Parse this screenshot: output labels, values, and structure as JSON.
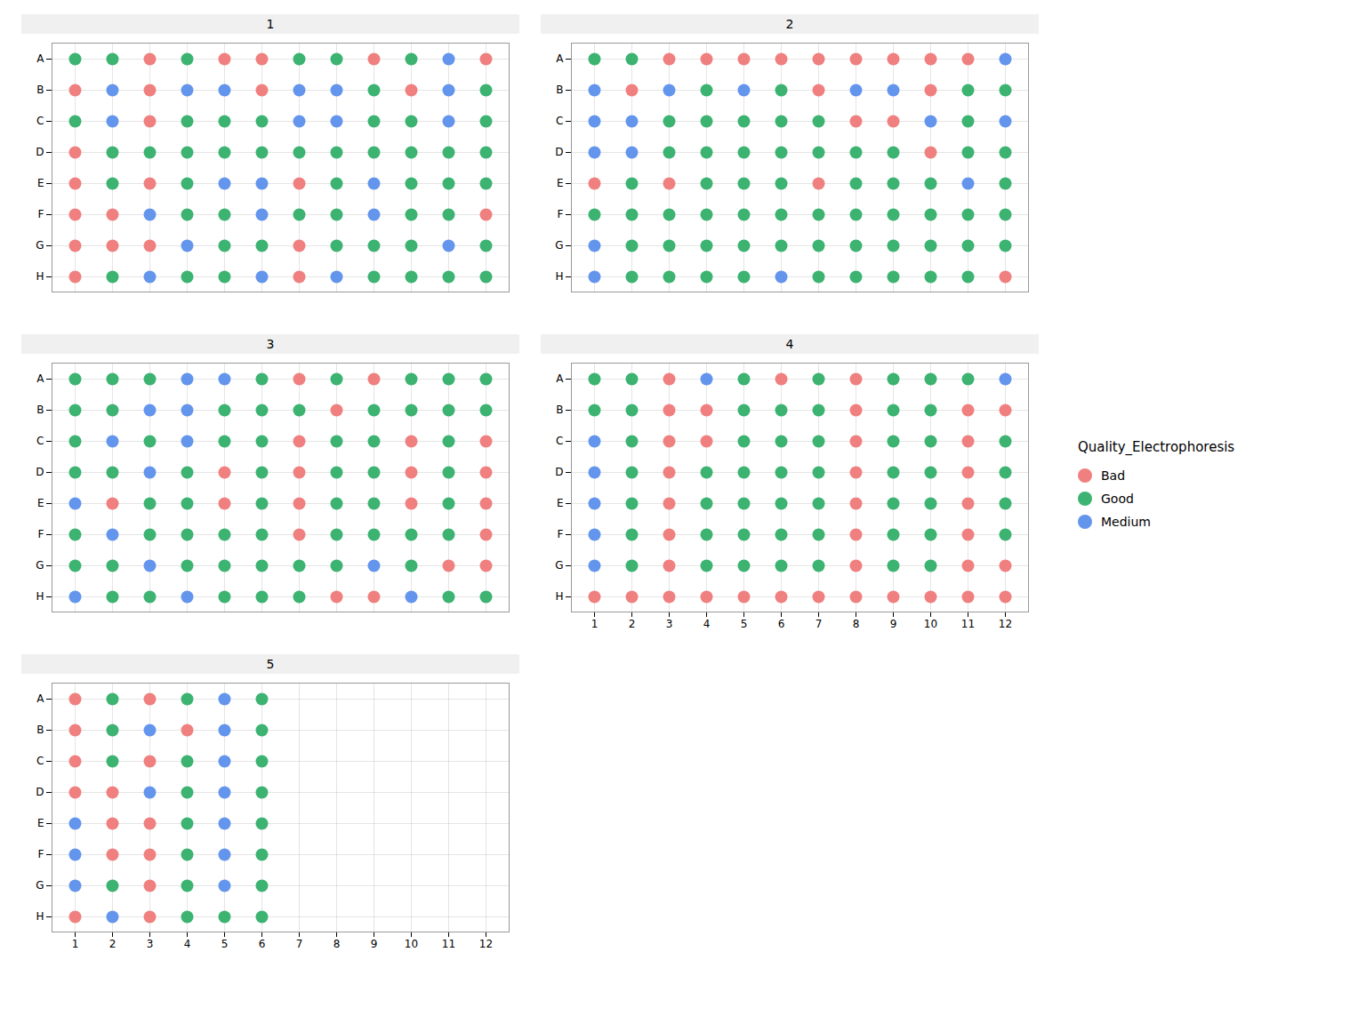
{
  "chart_data": {
    "type": "dot_grid",
    "title": "Quality_Electrophoresis",
    "legend": "right",
    "grid": true,
    "x": [
      1,
      2,
      3,
      4,
      5,
      6,
      7,
      8,
      9,
      10,
      11,
      12
    ],
    "y": [
      "A",
      "B",
      "C",
      "D",
      "E",
      "F",
      "G",
      "H"
    ],
    "series": [
      {
        "name": "Bad",
        "color": "#F08080"
      },
      {
        "name": "Good",
        "color": "#3CB371"
      },
      {
        "name": "Medium",
        "color": "#6495ED"
      }
    ],
    "panels": [
      {
        "title": "1",
        "tick_labels": "y",
        "cells": [
          [
            "Good",
            "Good",
            "Bad",
            "Good",
            "Bad",
            "Bad",
            "Good",
            "Good",
            "Bad",
            "Good",
            "Medium",
            "Bad"
          ],
          [
            "Bad",
            "Medium",
            "Bad",
            "Medium",
            "Medium",
            "Bad",
            "Medium",
            "Medium",
            "Good",
            "Bad",
            "Medium",
            "Good"
          ],
          [
            "Good",
            "Medium",
            "Bad",
            "Good",
            "Good",
            "Good",
            "Medium",
            "Medium",
            "Good",
            "Good",
            "Medium",
            "Good"
          ],
          [
            "Bad",
            "Good",
            "Good",
            "Good",
            "Good",
            "Good",
            "Good",
            "Good",
            "Good",
            "Good",
            "Good",
            "Good"
          ],
          [
            "Bad",
            "Good",
            "Bad",
            "Good",
            "Medium",
            "Medium",
            "Bad",
            "Good",
            "Medium",
            "Good",
            "Good",
            "Good"
          ],
          [
            "Bad",
            "Bad",
            "Medium",
            "Good",
            "Good",
            "Medium",
            "Good",
            "Good",
            "Medium",
            "Good",
            "Good",
            "Bad"
          ],
          [
            "Bad",
            "Bad",
            "Bad",
            "Medium",
            "Good",
            "Good",
            "Bad",
            "Good",
            "Good",
            "Good",
            "Medium",
            "Good"
          ],
          [
            "Bad",
            "Good",
            "Medium",
            "Good",
            "Good",
            "Medium",
            "Bad",
            "Medium",
            "Good",
            "Good",
            "Good",
            "Good"
          ]
        ]
      },
      {
        "title": "2",
        "tick_labels": "y",
        "cells": [
          [
            "Good",
            "Good",
            "Bad",
            "Bad",
            "Bad",
            "Bad",
            "Bad",
            "Bad",
            "Bad",
            "Bad",
            "Bad",
            "Medium"
          ],
          [
            "Medium",
            "Bad",
            "Medium",
            "Good",
            "Medium",
            "Good",
            "Bad",
            "Medium",
            "Medium",
            "Bad",
            "Good",
            "Good"
          ],
          [
            "Medium",
            "Medium",
            "Good",
            "Good",
            "Good",
            "Good",
            "Good",
            "Bad",
            "Bad",
            "Medium",
            "Good",
            "Medium"
          ],
          [
            "Medium",
            "Medium",
            "Good",
            "Good",
            "Good",
            "Good",
            "Good",
            "Good",
            "Good",
            "Bad",
            "Good",
            "Good"
          ],
          [
            "Bad",
            "Good",
            "Bad",
            "Good",
            "Good",
            "Good",
            "Bad",
            "Good",
            "Good",
            "Good",
            "Medium",
            "Good"
          ],
          [
            "Good",
            "Good",
            "Good",
            "Good",
            "Good",
            "Good",
            "Good",
            "Good",
            "Good",
            "Good",
            "Good",
            "Good"
          ],
          [
            "Medium",
            "Good",
            "Good",
            "Good",
            "Good",
            "Good",
            "Good",
            "Good",
            "Good",
            "Good",
            "Good",
            "Good"
          ],
          [
            "Medium",
            "Good",
            "Good",
            "Good",
            "Good",
            "Medium",
            "Good",
            "Good",
            "Good",
            "Good",
            "Good",
            "Bad"
          ]
        ]
      },
      {
        "title": "3",
        "tick_labels": "y",
        "cells": [
          [
            "Good",
            "Good",
            "Good",
            "Medium",
            "Medium",
            "Good",
            "Bad",
            "Good",
            "Bad",
            "Good",
            "Good",
            "Good"
          ],
          [
            "Good",
            "Good",
            "Medium",
            "Medium",
            "Good",
            "Good",
            "Good",
            "Bad",
            "Good",
            "Good",
            "Good",
            "Good"
          ],
          [
            "Good",
            "Medium",
            "Good",
            "Medium",
            "Good",
            "Good",
            "Bad",
            "Good",
            "Good",
            "Bad",
            "Good",
            "Bad"
          ],
          [
            "Good",
            "Good",
            "Medium",
            "Good",
            "Bad",
            "Good",
            "Bad",
            "Good",
            "Good",
            "Bad",
            "Good",
            "Bad"
          ],
          [
            "Medium",
            "Bad",
            "Good",
            "Good",
            "Bad",
            "Good",
            "Bad",
            "Good",
            "Good",
            "Bad",
            "Good",
            "Bad"
          ],
          [
            "Good",
            "Medium",
            "Good",
            "Good",
            "Good",
            "Good",
            "Bad",
            "Good",
            "Good",
            "Good",
            "Good",
            "Bad"
          ],
          [
            "Good",
            "Good",
            "Medium",
            "Good",
            "Good",
            "Good",
            "Good",
            "Good",
            "Medium",
            "Good",
            "Bad",
            "Bad"
          ],
          [
            "Medium",
            "Good",
            "Good",
            "Medium",
            "Good",
            "Good",
            "Good",
            "Bad",
            "Bad",
            "Medium",
            "Good",
            "Good"
          ]
        ]
      },
      {
        "title": "4",
        "cells": [
          [
            "Good",
            "Good",
            "Bad",
            "Medium",
            "Good",
            "Bad",
            "Good",
            "Bad",
            "Good",
            "Good",
            "Good",
            "Medium"
          ],
          [
            "Good",
            "Good",
            "Bad",
            "Bad",
            "Good",
            "Good",
            "Good",
            "Bad",
            "Good",
            "Good",
            "Bad",
            "Bad"
          ],
          [
            "Medium",
            "Good",
            "Bad",
            "Bad",
            "Good",
            "Good",
            "Good",
            "Bad",
            "Good",
            "Good",
            "Bad",
            "Good"
          ],
          [
            "Medium",
            "Good",
            "Bad",
            "Good",
            "Good",
            "Good",
            "Good",
            "Bad",
            "Good",
            "Good",
            "Bad",
            "Good"
          ],
          [
            "Medium",
            "Good",
            "Bad",
            "Good",
            "Good",
            "Good",
            "Good",
            "Bad",
            "Good",
            "Good",
            "Bad",
            "Good"
          ],
          [
            "Medium",
            "Good",
            "Bad",
            "Good",
            "Good",
            "Good",
            "Good",
            "Bad",
            "Good",
            "Good",
            "Bad",
            "Good"
          ],
          [
            "Medium",
            "Good",
            "Bad",
            "Good",
            "Good",
            "Good",
            "Good",
            "Bad",
            "Good",
            "Good",
            "Bad",
            "Bad"
          ],
          [
            "Bad",
            "Bad",
            "Bad",
            "Bad",
            "Bad",
            "Bad",
            "Bad",
            "Bad",
            "Bad",
            "Bad",
            "Bad",
            "Bad"
          ]
        ]
      },
      {
        "title": "5",
        "cells": [
          [
            "Bad",
            "Good",
            "Bad",
            "Good",
            "Medium",
            "Good",
            null,
            null,
            null,
            null,
            null,
            null
          ],
          [
            "Bad",
            "Good",
            "Medium",
            "Bad",
            "Medium",
            "Good",
            null,
            null,
            null,
            null,
            null,
            null
          ],
          [
            "Bad",
            "Good",
            "Bad",
            "Good",
            "Medium",
            "Good",
            null,
            null,
            null,
            null,
            null,
            null
          ],
          [
            "Bad",
            "Bad",
            "Medium",
            "Good",
            "Medium",
            "Good",
            null,
            null,
            null,
            null,
            null,
            null
          ],
          [
            "Medium",
            "Bad",
            "Bad",
            "Good",
            "Medium",
            "Good",
            null,
            null,
            null,
            null,
            null,
            null
          ],
          [
            "Medium",
            "Bad",
            "Bad",
            "Good",
            "Medium",
            "Good",
            null,
            null,
            null,
            null,
            null,
            null
          ],
          [
            "Medium",
            "Good",
            "Bad",
            "Good",
            "Medium",
            "Good",
            null,
            null,
            null,
            null,
            null,
            null
          ],
          [
            "Bad",
            "Medium",
            "Bad",
            "Good",
            "Good",
            "Good",
            null,
            null,
            null,
            null,
            null,
            null
          ]
        ]
      }
    ]
  }
}
